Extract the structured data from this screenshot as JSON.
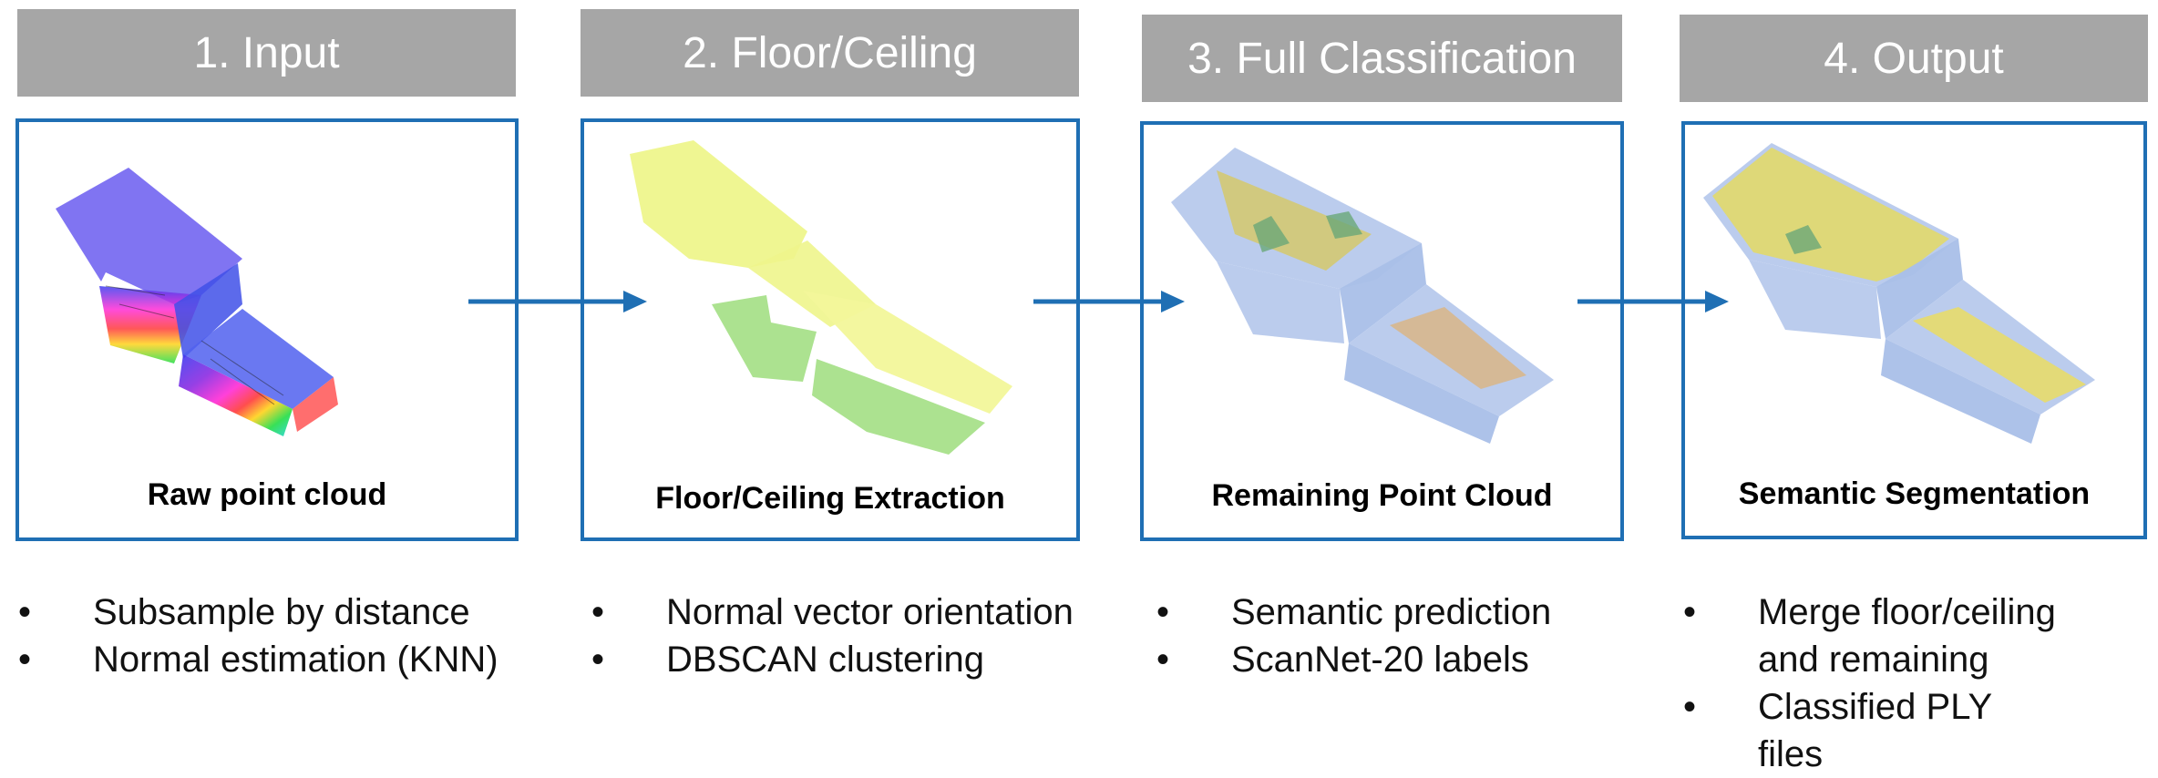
{
  "stages": [
    {
      "header": "1. Input",
      "caption": "Raw point cloud",
      "bullets": [
        "Subsample by distance",
        "Normal estimation (KNN)"
      ]
    },
    {
      "header": "2. Floor/Ceiling",
      "caption": "Floor/Ceiling Extraction",
      "bullets": [
        "Normal vector orientation",
        "DBSCAN clustering"
      ]
    },
    {
      "header": "3. Full Classification",
      "caption": "Remaining Point Cloud",
      "bullets": [
        "Semantic prediction",
        "ScanNet-20 labels"
      ]
    },
    {
      "header": "4. Output",
      "caption": "Semantic Segmentation",
      "bullets": [
        "Merge floor/ceiling and remaining",
        "Classified PLY files"
      ]
    }
  ],
  "colors": {
    "header_bg": "#a6a6a6",
    "panel_border": "#1f6fb4",
    "arrow": "#1f6fb4"
  }
}
